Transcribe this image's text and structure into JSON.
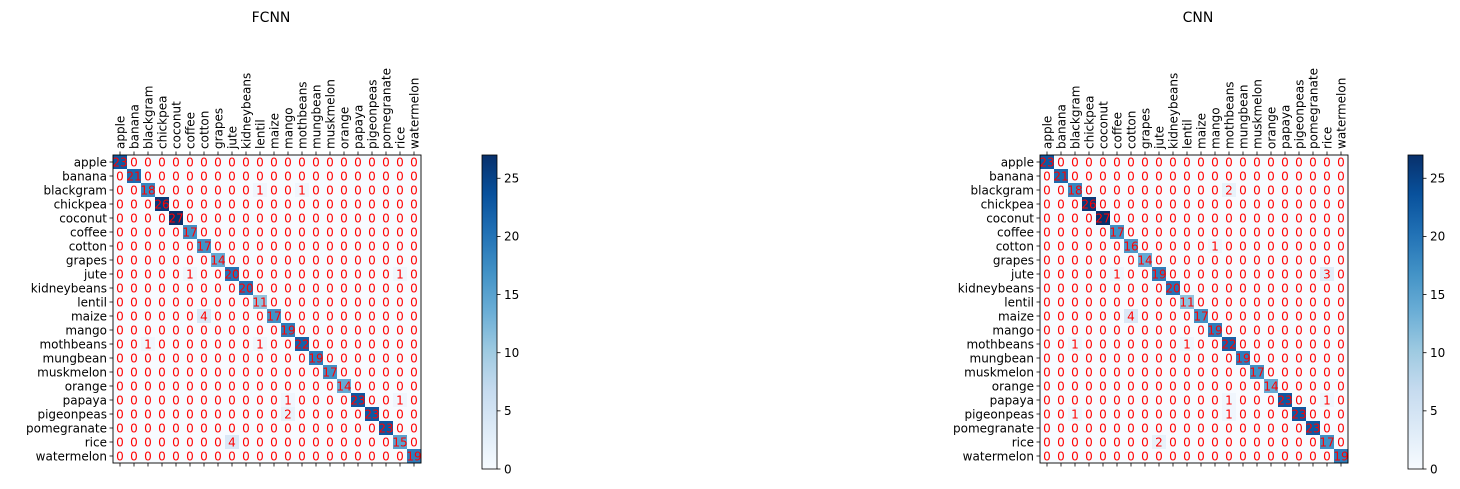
{
  "chart_data": [
    {
      "type": "heatmap",
      "title": "FCNN",
      "labels": [
        "apple",
        "banana",
        "blackgram",
        "chickpea",
        "coconut",
        "coffee",
        "cotton",
        "grapes",
        "jute",
        "kidneybeans",
        "lentil",
        "maize",
        "mango",
        "mothbeans",
        "mungbean",
        "muskmelon",
        "orange",
        "papaya",
        "pigeonpeas",
        "pomegranate",
        "rice",
        "watermelon"
      ],
      "matrix": [
        [
          23,
          0,
          0,
          0,
          0,
          0,
          0,
          0,
          0,
          0,
          0,
          0,
          0,
          0,
          0,
          0,
          0,
          0,
          0,
          0,
          0,
          0
        ],
        [
          0,
          21,
          0,
          0,
          0,
          0,
          0,
          0,
          0,
          0,
          0,
          0,
          0,
          0,
          0,
          0,
          0,
          0,
          0,
          0,
          0,
          0
        ],
        [
          0,
          0,
          18,
          0,
          0,
          0,
          0,
          0,
          0,
          0,
          1,
          0,
          0,
          1,
          0,
          0,
          0,
          0,
          0,
          0,
          0,
          0
        ],
        [
          0,
          0,
          0,
          26,
          0,
          0,
          0,
          0,
          0,
          0,
          0,
          0,
          0,
          0,
          0,
          0,
          0,
          0,
          0,
          0,
          0,
          0
        ],
        [
          0,
          0,
          0,
          0,
          27,
          0,
          0,
          0,
          0,
          0,
          0,
          0,
          0,
          0,
          0,
          0,
          0,
          0,
          0,
          0,
          0,
          0
        ],
        [
          0,
          0,
          0,
          0,
          0,
          17,
          0,
          0,
          0,
          0,
          0,
          0,
          0,
          0,
          0,
          0,
          0,
          0,
          0,
          0,
          0,
          0
        ],
        [
          0,
          0,
          0,
          0,
          0,
          0,
          17,
          0,
          0,
          0,
          0,
          0,
          0,
          0,
          0,
          0,
          0,
          0,
          0,
          0,
          0,
          0
        ],
        [
          0,
          0,
          0,
          0,
          0,
          0,
          0,
          14,
          0,
          0,
          0,
          0,
          0,
          0,
          0,
          0,
          0,
          0,
          0,
          0,
          0,
          0
        ],
        [
          0,
          0,
          0,
          0,
          0,
          1,
          0,
          0,
          20,
          0,
          0,
          0,
          0,
          0,
          0,
          0,
          0,
          0,
          0,
          0,
          1,
          0
        ],
        [
          0,
          0,
          0,
          0,
          0,
          0,
          0,
          0,
          0,
          20,
          0,
          0,
          0,
          0,
          0,
          0,
          0,
          0,
          0,
          0,
          0,
          0
        ],
        [
          0,
          0,
          0,
          0,
          0,
          0,
          0,
          0,
          0,
          0,
          11,
          0,
          0,
          0,
          0,
          0,
          0,
          0,
          0,
          0,
          0,
          0
        ],
        [
          0,
          0,
          0,
          0,
          0,
          0,
          4,
          0,
          0,
          0,
          0,
          17,
          0,
          0,
          0,
          0,
          0,
          0,
          0,
          0,
          0,
          0
        ],
        [
          0,
          0,
          0,
          0,
          0,
          0,
          0,
          0,
          0,
          0,
          0,
          0,
          19,
          0,
          0,
          0,
          0,
          0,
          0,
          0,
          0,
          0
        ],
        [
          0,
          0,
          1,
          0,
          0,
          0,
          0,
          0,
          0,
          0,
          1,
          0,
          0,
          22,
          0,
          0,
          0,
          0,
          0,
          0,
          0,
          0
        ],
        [
          0,
          0,
          0,
          0,
          0,
          0,
          0,
          0,
          0,
          0,
          0,
          0,
          0,
          0,
          19,
          0,
          0,
          0,
          0,
          0,
          0,
          0
        ],
        [
          0,
          0,
          0,
          0,
          0,
          0,
          0,
          0,
          0,
          0,
          0,
          0,
          0,
          0,
          0,
          17,
          0,
          0,
          0,
          0,
          0,
          0
        ],
        [
          0,
          0,
          0,
          0,
          0,
          0,
          0,
          0,
          0,
          0,
          0,
          0,
          0,
          0,
          0,
          0,
          14,
          0,
          0,
          0,
          0,
          0
        ],
        [
          0,
          0,
          0,
          0,
          0,
          0,
          0,
          0,
          0,
          0,
          0,
          0,
          1,
          0,
          0,
          0,
          0,
          23,
          0,
          0,
          1,
          0
        ],
        [
          0,
          0,
          0,
          0,
          0,
          0,
          0,
          0,
          0,
          0,
          0,
          0,
          2,
          0,
          0,
          0,
          0,
          0,
          23,
          0,
          0,
          0
        ],
        [
          0,
          0,
          0,
          0,
          0,
          0,
          0,
          0,
          0,
          0,
          0,
          0,
          0,
          0,
          0,
          0,
          0,
          0,
          0,
          23,
          0,
          0
        ],
        [
          0,
          0,
          0,
          0,
          0,
          0,
          0,
          0,
          4,
          0,
          0,
          0,
          0,
          0,
          0,
          0,
          0,
          0,
          0,
          0,
          15,
          0
        ],
        [
          0,
          0,
          0,
          0,
          0,
          0,
          0,
          0,
          0,
          0,
          0,
          0,
          0,
          0,
          0,
          0,
          0,
          0,
          0,
          0,
          0,
          19
        ]
      ],
      "colorbar": {
        "range": [
          0,
          27
        ],
        "ticks": [
          0,
          5,
          10,
          15,
          20,
          25
        ],
        "colormap": "Blues"
      },
      "cell_text_color": "#ff0000"
    },
    {
      "type": "heatmap",
      "title": "CNN",
      "labels": [
        "apple",
        "banana",
        "blackgram",
        "chickpea",
        "coconut",
        "coffee",
        "cotton",
        "grapes",
        "jute",
        "kidneybeans",
        "lentil",
        "maize",
        "mango",
        "mothbeans",
        "mungbean",
        "muskmelon",
        "orange",
        "papaya",
        "pigeonpeas",
        "pomegranate",
        "rice",
        "watermelon"
      ],
      "matrix": [
        [
          23,
          0,
          0,
          0,
          0,
          0,
          0,
          0,
          0,
          0,
          0,
          0,
          0,
          0,
          0,
          0,
          0,
          0,
          0,
          0,
          0,
          0
        ],
        [
          0,
          21,
          0,
          0,
          0,
          0,
          0,
          0,
          0,
          0,
          0,
          0,
          0,
          0,
          0,
          0,
          0,
          0,
          0,
          0,
          0,
          0
        ],
        [
          0,
          0,
          18,
          0,
          0,
          0,
          0,
          0,
          0,
          0,
          0,
          0,
          0,
          2,
          0,
          0,
          0,
          0,
          0,
          0,
          0,
          0
        ],
        [
          0,
          0,
          0,
          26,
          0,
          0,
          0,
          0,
          0,
          0,
          0,
          0,
          0,
          0,
          0,
          0,
          0,
          0,
          0,
          0,
          0,
          0
        ],
        [
          0,
          0,
          0,
          0,
          27,
          0,
          0,
          0,
          0,
          0,
          0,
          0,
          0,
          0,
          0,
          0,
          0,
          0,
          0,
          0,
          0,
          0
        ],
        [
          0,
          0,
          0,
          0,
          0,
          17,
          0,
          0,
          0,
          0,
          0,
          0,
          0,
          0,
          0,
          0,
          0,
          0,
          0,
          0,
          0,
          0
        ],
        [
          0,
          0,
          0,
          0,
          0,
          0,
          16,
          0,
          0,
          0,
          0,
          0,
          1,
          0,
          0,
          0,
          0,
          0,
          0,
          0,
          0,
          0
        ],
        [
          0,
          0,
          0,
          0,
          0,
          0,
          0,
          14,
          0,
          0,
          0,
          0,
          0,
          0,
          0,
          0,
          0,
          0,
          0,
          0,
          0,
          0
        ],
        [
          0,
          0,
          0,
          0,
          0,
          1,
          0,
          0,
          19,
          0,
          0,
          0,
          0,
          0,
          0,
          0,
          0,
          0,
          0,
          0,
          3,
          0
        ],
        [
          0,
          0,
          0,
          0,
          0,
          0,
          0,
          0,
          0,
          20,
          0,
          0,
          0,
          0,
          0,
          0,
          0,
          0,
          0,
          0,
          0,
          0
        ],
        [
          0,
          0,
          0,
          0,
          0,
          0,
          0,
          0,
          0,
          0,
          11,
          0,
          0,
          0,
          0,
          0,
          0,
          0,
          0,
          0,
          0,
          0
        ],
        [
          0,
          0,
          0,
          0,
          0,
          0,
          4,
          0,
          0,
          0,
          0,
          17,
          0,
          0,
          0,
          0,
          0,
          0,
          0,
          0,
          0,
          0
        ],
        [
          0,
          0,
          0,
          0,
          0,
          0,
          0,
          0,
          0,
          0,
          0,
          0,
          19,
          0,
          0,
          0,
          0,
          0,
          0,
          0,
          0,
          0
        ],
        [
          0,
          0,
          1,
          0,
          0,
          0,
          0,
          0,
          0,
          0,
          1,
          0,
          0,
          22,
          0,
          0,
          0,
          0,
          0,
          0,
          0,
          0
        ],
        [
          0,
          0,
          0,
          0,
          0,
          0,
          0,
          0,
          0,
          0,
          0,
          0,
          0,
          0,
          19,
          0,
          0,
          0,
          0,
          0,
          0,
          0
        ],
        [
          0,
          0,
          0,
          0,
          0,
          0,
          0,
          0,
          0,
          0,
          0,
          0,
          0,
          0,
          0,
          17,
          0,
          0,
          0,
          0,
          0,
          0
        ],
        [
          0,
          0,
          0,
          0,
          0,
          0,
          0,
          0,
          0,
          0,
          0,
          0,
          0,
          0,
          0,
          0,
          14,
          0,
          0,
          0,
          0,
          0
        ],
        [
          0,
          0,
          0,
          0,
          0,
          0,
          0,
          0,
          0,
          0,
          0,
          0,
          0,
          1,
          0,
          0,
          0,
          23,
          0,
          0,
          1,
          0
        ],
        [
          0,
          0,
          1,
          0,
          0,
          0,
          0,
          0,
          0,
          0,
          0,
          0,
          0,
          1,
          0,
          0,
          0,
          0,
          23,
          0,
          0,
          0
        ],
        [
          0,
          0,
          0,
          0,
          0,
          0,
          0,
          0,
          0,
          0,
          0,
          0,
          0,
          0,
          0,
          0,
          0,
          0,
          0,
          23,
          0,
          0
        ],
        [
          0,
          0,
          0,
          0,
          0,
          0,
          0,
          0,
          2,
          0,
          0,
          0,
          0,
          0,
          0,
          0,
          0,
          0,
          0,
          0,
          17,
          0
        ],
        [
          0,
          0,
          0,
          0,
          0,
          0,
          0,
          0,
          0,
          0,
          0,
          0,
          0,
          0,
          0,
          0,
          0,
          0,
          0,
          0,
          0,
          19
        ]
      ],
      "colorbar": {
        "range": [
          0,
          27
        ],
        "ticks": [
          0,
          5,
          10,
          15,
          20,
          25
        ],
        "colormap": "Blues"
      },
      "cell_text_color": "#ff0000"
    }
  ]
}
